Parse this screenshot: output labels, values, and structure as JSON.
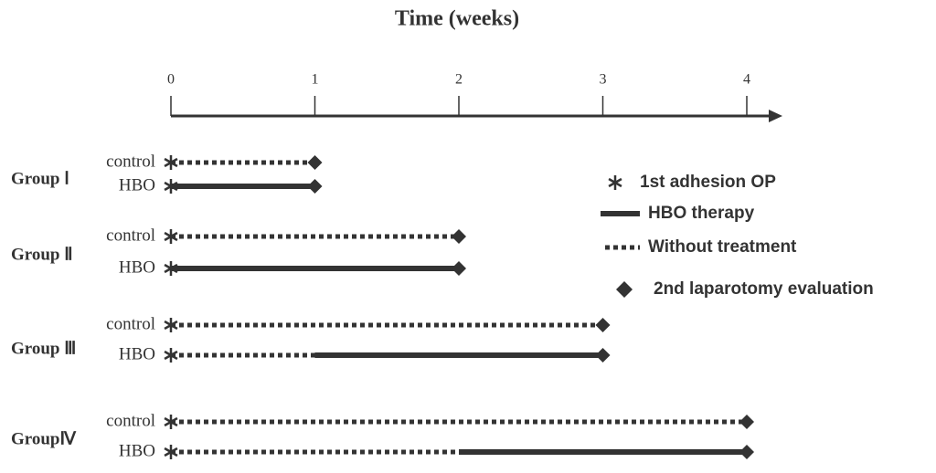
{
  "title": "Time  (weeks)",
  "axis": {
    "ticks": [
      0,
      1,
      2,
      3,
      4
    ]
  },
  "groups": [
    {
      "label": "Group Ⅰ",
      "rows": [
        {
          "label": "control",
          "segments": [
            {
              "style": "dotted",
              "from": 0,
              "to": 1
            }
          ]
        },
        {
          "label": "HBO",
          "segments": [
            {
              "style": "solid",
              "from": 0,
              "to": 1
            }
          ]
        }
      ]
    },
    {
      "label": "Group Ⅱ",
      "rows": [
        {
          "label": "control",
          "segments": [
            {
              "style": "dotted",
              "from": 0,
              "to": 2
            }
          ]
        },
        {
          "label": "HBO",
          "segments": [
            {
              "style": "solid",
              "from": 0,
              "to": 2
            }
          ]
        }
      ]
    },
    {
      "label": "Group Ⅲ",
      "rows": [
        {
          "label": "control",
          "segments": [
            {
              "style": "dotted",
              "from": 0,
              "to": 3
            }
          ]
        },
        {
          "label": "HBO",
          "segments": [
            {
              "style": "dotted",
              "from": 0,
              "to": 1
            },
            {
              "style": "solid",
              "from": 1,
              "to": 3
            }
          ]
        }
      ]
    },
    {
      "label": "GroupⅣ",
      "rows": [
        {
          "label": "control",
          "segments": [
            {
              "style": "dotted",
              "from": 0,
              "to": 4
            }
          ]
        },
        {
          "label": "HBO",
          "segments": [
            {
              "style": "dotted",
              "from": 0,
              "to": 2
            },
            {
              "style": "solid",
              "from": 2,
              "to": 4
            }
          ]
        }
      ]
    }
  ],
  "legend": {
    "items": [
      {
        "symbol": "asterisk",
        "label": "1st adhesion OP"
      },
      {
        "symbol": "solid",
        "label": "HBO therapy"
      },
      {
        "symbol": "dotted",
        "label": "Without treatment"
      },
      {
        "symbol": "diamond",
        "label": "2nd laparotomy evaluation"
      }
    ]
  }
}
